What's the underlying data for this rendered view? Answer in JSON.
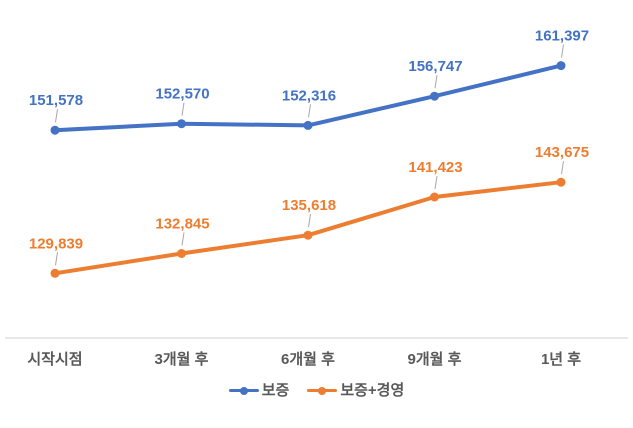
{
  "chart_data": {
    "type": "line",
    "categories": [
      "시작시점",
      "3개월 후",
      "6개월 후",
      "9개월 후",
      "1년 후"
    ],
    "series": [
      {
        "name": "보증",
        "color": "#4472c4",
        "values": [
          151578,
          152570,
          152316,
          156747,
          161397
        ]
      },
      {
        "name": "보증+경영",
        "color": "#ed7d31",
        "values": [
          129839,
          132845,
          135618,
          141423,
          143675
        ]
      }
    ],
    "title": "",
    "xlabel": "",
    "ylabel": "",
    "ylim": [
      120000,
      172000
    ],
    "grid": false,
    "legend_position": "bottom",
    "data_labels": true,
    "data_label_format": "#,###",
    "data_label_leader_lines": true
  },
  "styles": {
    "background": "#ffffff",
    "axis_line_color": "#d9d9d9",
    "axis_text_color": "#595959",
    "leader_line_color": "#a6a6a6"
  }
}
